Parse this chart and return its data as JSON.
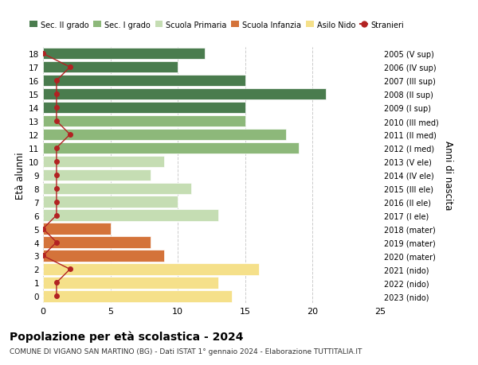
{
  "ages": [
    18,
    17,
    16,
    15,
    14,
    13,
    12,
    11,
    10,
    9,
    8,
    7,
    6,
    5,
    4,
    3,
    2,
    1,
    0
  ],
  "bar_values": [
    12,
    10,
    15,
    21,
    15,
    15,
    18,
    19,
    9,
    8,
    11,
    10,
    13,
    5,
    8,
    9,
    16,
    13,
    14
  ],
  "bar_colors": [
    "#4a7c4e",
    "#4a7c4e",
    "#4a7c4e",
    "#4a7c4e",
    "#4a7c4e",
    "#8db87a",
    "#8db87a",
    "#8db87a",
    "#c5ddb3",
    "#c5ddb3",
    "#c5ddb3",
    "#c5ddb3",
    "#c5ddb3",
    "#d4733a",
    "#d4733a",
    "#d4733a",
    "#f5e08a",
    "#f5e08a",
    "#f5e08a"
  ],
  "stranieri_values": [
    0,
    2,
    1,
    1,
    1,
    1,
    2,
    1,
    1,
    1,
    1,
    1,
    1,
    0,
    1,
    0,
    2,
    1,
    1
  ],
  "right_labels": [
    "2005 (V sup)",
    "2006 (IV sup)",
    "2007 (III sup)",
    "2008 (II sup)",
    "2009 (I sup)",
    "2010 (III med)",
    "2011 (II med)",
    "2012 (I med)",
    "2013 (V ele)",
    "2014 (IV ele)",
    "2015 (III ele)",
    "2016 (II ele)",
    "2017 (I ele)",
    "2018 (mater)",
    "2019 (mater)",
    "2020 (mater)",
    "2021 (nido)",
    "2022 (nido)",
    "2023 (nido)"
  ],
  "legend_labels": [
    "Sec. II grado",
    "Sec. I grado",
    "Scuola Primaria",
    "Scuola Infanzia",
    "Asilo Nido",
    "Stranieri"
  ],
  "legend_colors": [
    "#4a7c4e",
    "#8db87a",
    "#c5ddb3",
    "#d4733a",
    "#f5e08a",
    "#b22222"
  ],
  "ylabel": "Età alunni",
  "right_ylabel": "Anni di nascita",
  "title": "Popolazione per età scolastica - 2024",
  "subtitle": "COMUNE DI VIGANO SAN MARTINO (BG) - Dati ISTAT 1° gennaio 2024 - Elaborazione TUTTITALIA.IT",
  "xlim": [
    0,
    25
  ],
  "xticks": [
    0,
    5,
    10,
    15,
    20,
    25
  ],
  "stranieri_color": "#b22222",
  "background_color": "#ffffff",
  "grid_color": "#cccccc"
}
